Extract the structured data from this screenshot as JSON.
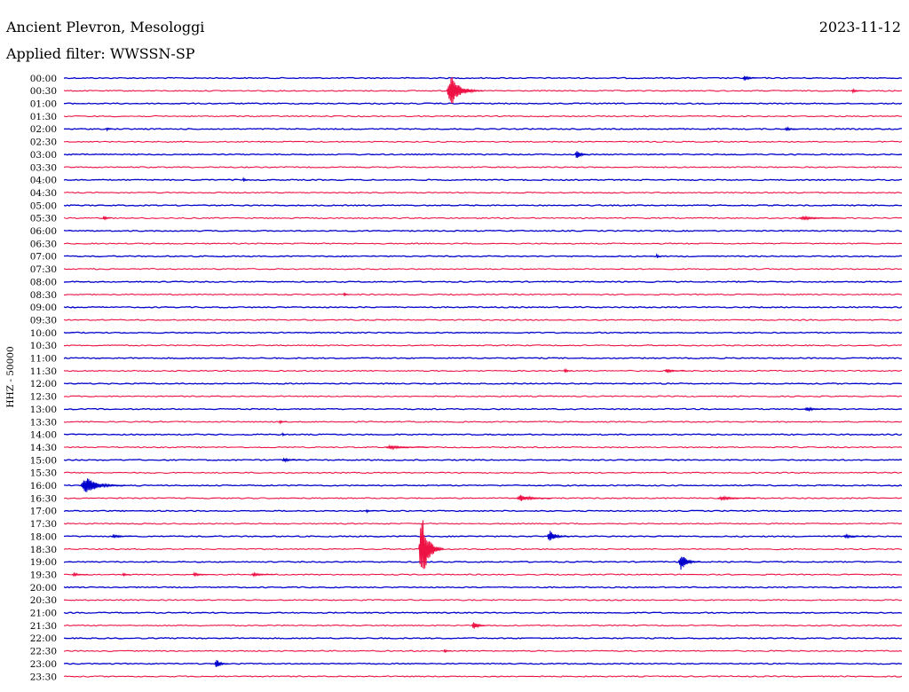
{
  "header": {
    "station": "Ancient Plevron, Mesologgi",
    "date": "2023-11-12",
    "filter": "Applied filter: WWSSN-SP"
  },
  "chart_data": {
    "type": "line",
    "ylabel": "HHZ - 50000",
    "colors": {
      "even_rows": "#0000cc",
      "odd_rows": "#ee1144"
    },
    "rows": [
      "00:00",
      "00:30",
      "01:00",
      "01:30",
      "02:00",
      "02:30",
      "03:00",
      "03:30",
      "04:00",
      "04:30",
      "05:00",
      "05:30",
      "06:00",
      "06:30",
      "07:00",
      "07:30",
      "08:00",
      "08:30",
      "09:00",
      "09:30",
      "10:00",
      "10:30",
      "11:00",
      "11:30",
      "12:00",
      "12:30",
      "13:00",
      "13:30",
      "14:00",
      "14:30",
      "15:00",
      "15:30",
      "16:00",
      "16:30",
      "17:00",
      "17:30",
      "18:00",
      "18:30",
      "19:00",
      "19:30",
      "20:00",
      "20:30",
      "21:00",
      "21:30",
      "22:00",
      "22:30",
      "23:00",
      "23:30"
    ],
    "events": [
      {
        "row": "00:00",
        "minute": 24.3,
        "amplitude": 3,
        "duration": 0.6
      },
      {
        "row": "00:30",
        "minute": 13.7,
        "amplitude": 18,
        "duration": 1.3
      },
      {
        "row": "00:30",
        "minute": 28.2,
        "amplitude": 2,
        "duration": 0.4
      },
      {
        "row": "02:00",
        "minute": 1.5,
        "amplitude": 2,
        "duration": 0.3
      },
      {
        "row": "02:00",
        "minute": 25.8,
        "amplitude": 2,
        "duration": 0.6
      },
      {
        "row": "03:00",
        "minute": 18.3,
        "amplitude": 7,
        "duration": 0.5
      },
      {
        "row": "04:00",
        "minute": 6.4,
        "amplitude": 3,
        "duration": 0.2
      },
      {
        "row": "05:30",
        "minute": 1.4,
        "amplitude": 3,
        "duration": 0.3
      },
      {
        "row": "05:30",
        "minute": 26.3,
        "amplitude": 2,
        "duration": 1.6
      },
      {
        "row": "07:00",
        "minute": 21.2,
        "amplitude": 3,
        "duration": 0.2
      },
      {
        "row": "08:30",
        "minute": 10.0,
        "amplitude": 2,
        "duration": 0.3
      },
      {
        "row": "11:30",
        "minute": 17.9,
        "amplitude": 3,
        "duration": 0.3
      },
      {
        "row": "11:30",
        "minute": 21.5,
        "amplitude": 2,
        "duration": 0.8
      },
      {
        "row": "13:00",
        "minute": 26.5,
        "amplitude": 2,
        "duration": 1.0
      },
      {
        "row": "13:30",
        "minute": 7.7,
        "amplitude": 2,
        "duration": 0.3
      },
      {
        "row": "14:00",
        "minute": 7.8,
        "amplitude": 2,
        "duration": 0.2
      },
      {
        "row": "14:30",
        "minute": 11.5,
        "amplitude": 2,
        "duration": 1.6
      },
      {
        "row": "15:00",
        "minute": 7.8,
        "amplitude": 2,
        "duration": 0.8
      },
      {
        "row": "16:00",
        "minute": 0.6,
        "amplitude": 10,
        "duration": 1.6
      },
      {
        "row": "16:30",
        "minute": 16.2,
        "amplitude": 4,
        "duration": 1.3
      },
      {
        "row": "16:30",
        "minute": 23.4,
        "amplitude": 2,
        "duration": 1.4
      },
      {
        "row": "17:00",
        "minute": 10.8,
        "amplitude": 2,
        "duration": 0.3
      },
      {
        "row": "18:00",
        "minute": 1.7,
        "amplitude": 2,
        "duration": 0.8
      },
      {
        "row": "18:00",
        "minute": 17.3,
        "amplitude": 7,
        "duration": 0.8
      },
      {
        "row": "18:00",
        "minute": 27.9,
        "amplitude": 2,
        "duration": 1.0
      },
      {
        "row": "18:30",
        "minute": 12.7,
        "amplitude": 42,
        "duration": 0.9
      },
      {
        "row": "19:00",
        "minute": 22.0,
        "amplitude": 10,
        "duration": 0.8
      },
      {
        "row": "19:30",
        "minute": 0.3,
        "amplitude": 2,
        "duration": 0.6
      },
      {
        "row": "19:30",
        "minute": 2.1,
        "amplitude": 2,
        "duration": 0.3
      },
      {
        "row": "19:30",
        "minute": 4.6,
        "amplitude": 2,
        "duration": 0.6
      },
      {
        "row": "19:30",
        "minute": 6.7,
        "amplitude": 2,
        "duration": 0.9
      },
      {
        "row": "21:30",
        "minute": 14.6,
        "amplitude": 5,
        "duration": 0.6
      },
      {
        "row": "22:30",
        "minute": 13.6,
        "amplitude": 2,
        "duration": 0.3
      },
      {
        "row": "23:00",
        "minute": 5.4,
        "amplitude": 6,
        "duration": 0.5
      }
    ]
  }
}
